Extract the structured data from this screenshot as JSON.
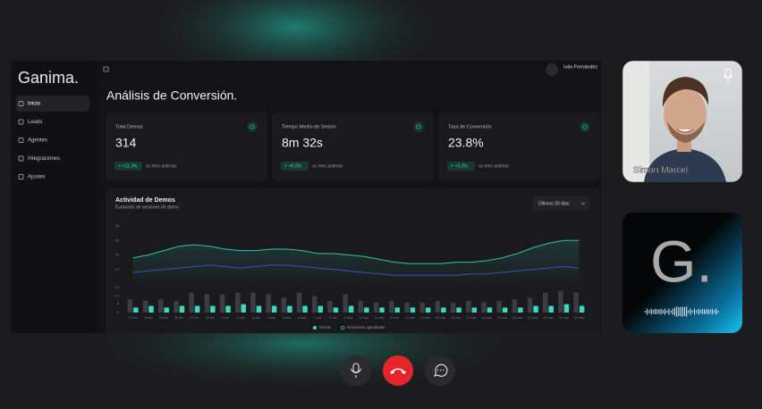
{
  "call": {
    "participant": "Simon Marcel",
    "agent_logo": "G."
  },
  "dashboard": {
    "logo": "Ganima.",
    "nav": [
      "Inicio",
      "Leads",
      "Agentes",
      "Integraciones",
      "Ajustes"
    ],
    "user": "Iván Fernández",
    "title": "Análisis de Conversión.",
    "cards": [
      {
        "label": "Total Demos",
        "value": "314",
        "change": "↗ +11.3%",
        "note": "vs mes anterior"
      },
      {
        "label": "Tiempo Medio de Sesión",
        "value": "8m 32s",
        "change": "↗ +6.3%",
        "note": "vs mes anterior"
      },
      {
        "label": "Tasa de Conversión",
        "value": "23.8%",
        "change": "↗ +3.2%",
        "note": "vs mes anterior"
      }
    ],
    "activity": {
      "title": "Actividad de Demos",
      "subtitle": "Evolución de sesiones de demo.",
      "range": "Últimos 30 días",
      "categories": [
        "23 feb",
        "24 feb",
        "25 feb",
        "26 feb",
        "27 feb",
        "28 feb",
        "1 mar",
        "2 mar",
        "3 mar",
        "4 mar",
        "5 mar",
        "6 mar",
        "7 mar",
        "8 mar",
        "9 mar",
        "10 mar",
        "11 mar",
        "12 mar",
        "13 mar",
        "14 mar",
        "15 mar",
        "16 mar",
        "17 mar",
        "18 mar",
        "19 mar",
        "20 mar",
        "21 mar",
        "22 mar",
        "23 mar",
        "24 mar"
      ],
      "lines": [
        {
          "color": "#2fbfa6",
          "values": [
            18,
            20,
            23,
            26,
            27,
            26,
            24,
            23,
            23,
            24,
            24,
            23,
            21,
            21,
            20,
            19,
            17,
            15,
            14,
            14,
            14,
            15,
            15,
            16,
            18,
            21,
            25,
            28,
            30,
            30
          ]
        },
        {
          "color": "#3b4fb8",
          "values": [
            8,
            9,
            10,
            11,
            12,
            13,
            12,
            11,
            12,
            13,
            13,
            12,
            11,
            10,
            9,
            8,
            7,
            6,
            6,
            6,
            6,
            6,
            7,
            7,
            8,
            9,
            10,
            11,
            12,
            11
          ]
        }
      ],
      "ylim": [
        0,
        40
      ],
      "yticks": [
        10,
        20,
        30,
        40
      ],
      "bars": [
        {
          "name": "Demos",
          "color": "#3fd6c0",
          "values": [
            3,
            4,
            3,
            4,
            4,
            4,
            4,
            5,
            4,
            4,
            4,
            4,
            4,
            3,
            4,
            3,
            3,
            3,
            3,
            3,
            3,
            3,
            3,
            3,
            3,
            3,
            4,
            4,
            5,
            4
          ]
        },
        {
          "name": "Reuniones agendadas",
          "color": "#3a3d42",
          "values": [
            8,
            7,
            8,
            7,
            12,
            11,
            11,
            12,
            12,
            11,
            9,
            12,
            10,
            7,
            11,
            7,
            6,
            7,
            6,
            6,
            7,
            6,
            7,
            6,
            7,
            8,
            9,
            12,
            13,
            12
          ]
        }
      ],
      "y2lim": [
        0,
        15
      ],
      "y2ticks": [
        0,
        5,
        10,
        15
      ]
    }
  }
}
